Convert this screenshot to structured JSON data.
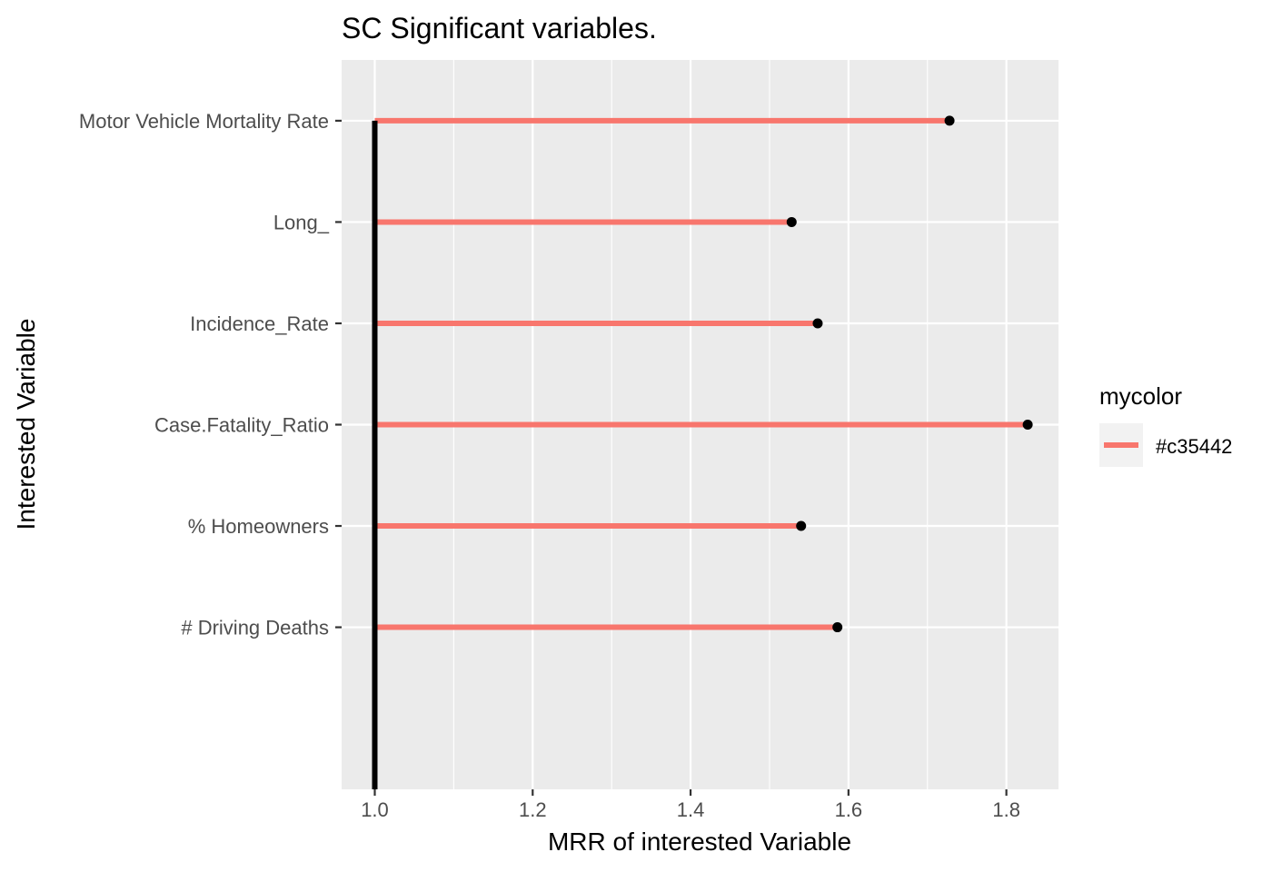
{
  "chart_data": {
    "type": "lollipop",
    "title": "SC Significant variables.",
    "xlabel": "MRR of interested Variable",
    "ylabel": "Interested Variable",
    "categories": [
      "Motor Vehicle Mortality Rate",
      "Long_",
      "Incidence_Rate",
      "Case.Fatality_Ratio",
      "% Homeowners",
      "# Driving Deaths"
    ],
    "values": [
      1.728,
      1.528,
      1.561,
      1.827,
      1.54,
      1.586
    ],
    "baseline": 1.0,
    "xlim": [
      0.958,
      1.866
    ],
    "xticks": [
      1.0,
      1.2,
      1.4,
      1.6,
      1.8
    ],
    "xtick_labels": [
      "1.0",
      "1.2",
      "1.4",
      "1.6",
      "1.8"
    ],
    "grid": true,
    "legend": {
      "title": "mycolor",
      "entries": [
        "#c35442"
      ],
      "placement": "right"
    },
    "colors": {
      "segment": "#f8766d",
      "point": "#000000",
      "baseline": "#000000",
      "panel_bg": "#ebebeb",
      "grid": "#ffffff"
    }
  }
}
